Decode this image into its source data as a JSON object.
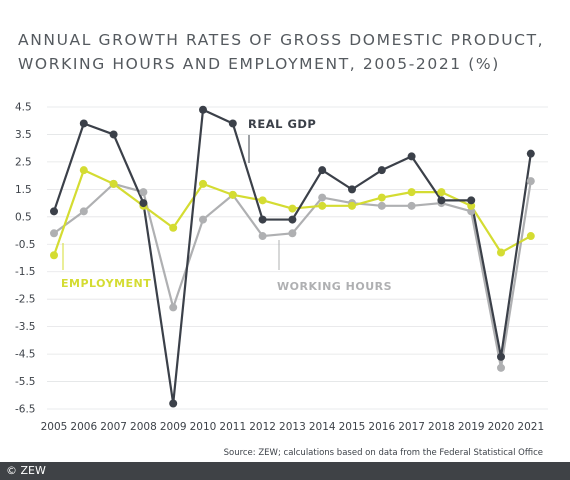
{
  "chart_data": {
    "type": "line",
    "title": [
      "ANNUAL GROWTH RATES OF GROSS DOMESTIC PRODUCT,",
      "WORKING HOURS AND EMPLOYMENT, 2005-2021 (%)"
    ],
    "x": [
      "2005",
      "2006",
      "2007",
      "2008",
      "2009",
      "2010",
      "2011",
      "2012",
      "2013",
      "2014",
      "2015",
      "2016",
      "2017",
      "2018",
      "2019",
      "2020",
      "2021"
    ],
    "yticks": [
      4.5,
      3.5,
      2.5,
      1.5,
      0.5,
      -0.5,
      -1.5,
      -2.5,
      -3.5,
      -4.5,
      -5.5,
      -6.5
    ],
    "ylim": [
      -6.5,
      4.5
    ],
    "grid": true,
    "series": [
      {
        "name": "REAL GDP",
        "color": "#3b4049",
        "values": [
          0.7,
          3.9,
          3.5,
          1.0,
          -6.3,
          4.4,
          3.9,
          0.4,
          0.4,
          2.2,
          1.5,
          2.2,
          2.7,
          1.1,
          1.1,
          -4.6,
          2.8
        ]
      },
      {
        "name": "WORKING HOURS",
        "color": "#afb0b2",
        "values": [
          -0.1,
          0.7,
          1.7,
          1.4,
          -2.8,
          0.4,
          1.3,
          -0.2,
          -0.1,
          1.2,
          1.0,
          0.9,
          0.9,
          1.0,
          0.7,
          -5.0,
          1.8
        ]
      },
      {
        "name": "EMPLOYMENT",
        "color": "#d4dc32",
        "values": [
          -0.9,
          2.2,
          1.7,
          0.9,
          0.1,
          1.7,
          1.3,
          1.1,
          0.8,
          0.9,
          0.9,
          1.2,
          1.4,
          1.4,
          0.9,
          -0.8,
          -0.2
        ]
      }
    ],
    "source": "Source: ZEW; calculations based on data from the Federal Statistical Office"
  },
  "footer": {
    "copyright": "© ZEW"
  }
}
